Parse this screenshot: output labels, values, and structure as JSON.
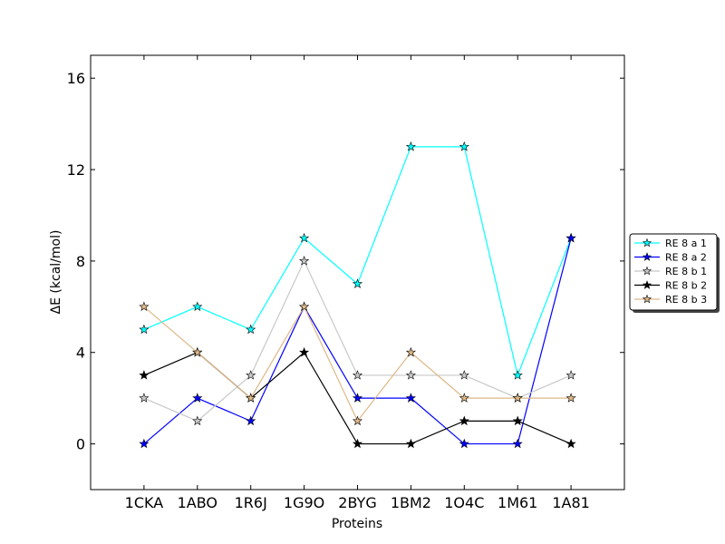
{
  "chart_data": {
    "type": "line",
    "title": "",
    "xlabel": "Proteins",
    "ylabel": "ΔE (kcal/mol)",
    "categories": [
      "1CKA",
      "1ABO",
      "1R6J",
      "1G9O",
      "2BYG",
      "1BM2",
      "1O4C",
      "1M61",
      "1A81"
    ],
    "ylim": [
      -2,
      17
    ],
    "xlim": [
      -1,
      9
    ],
    "yticks": [
      0,
      4,
      8,
      12,
      16
    ],
    "ytick_labels": [
      "0",
      "4",
      "8",
      "12",
      "16"
    ],
    "grid": false,
    "legend_position": "right-outside",
    "series": [
      {
        "name": "RE 8 a 1",
        "color": "#00ffff",
        "marker_face": "#00ffff",
        "values": [
          5,
          6,
          5,
          9,
          7,
          13,
          13,
          3,
          9
        ]
      },
      {
        "name": "RE 8 a 2",
        "color": "#0000ff",
        "marker_face": "#0000ff",
        "values": [
          0,
          2,
          1,
          6,
          2,
          2,
          0,
          0,
          9
        ]
      },
      {
        "name": "RE 8 b 1",
        "color": "#c8c8c8",
        "marker_face": "#c8c8c8",
        "values": [
          2,
          1,
          3,
          8,
          3,
          3,
          3,
          2,
          3
        ]
      },
      {
        "name": "RE 8 b 2",
        "color": "#000000",
        "marker_face": "#000000",
        "values": [
          3,
          4,
          2,
          4,
          0,
          0,
          1,
          1,
          0
        ]
      },
      {
        "name": "RE 8 b 3",
        "color": "#deb887",
        "marker_face": "#deb887",
        "values": [
          6,
          4,
          2,
          6,
          1,
          4,
          2,
          2,
          2
        ]
      }
    ]
  }
}
